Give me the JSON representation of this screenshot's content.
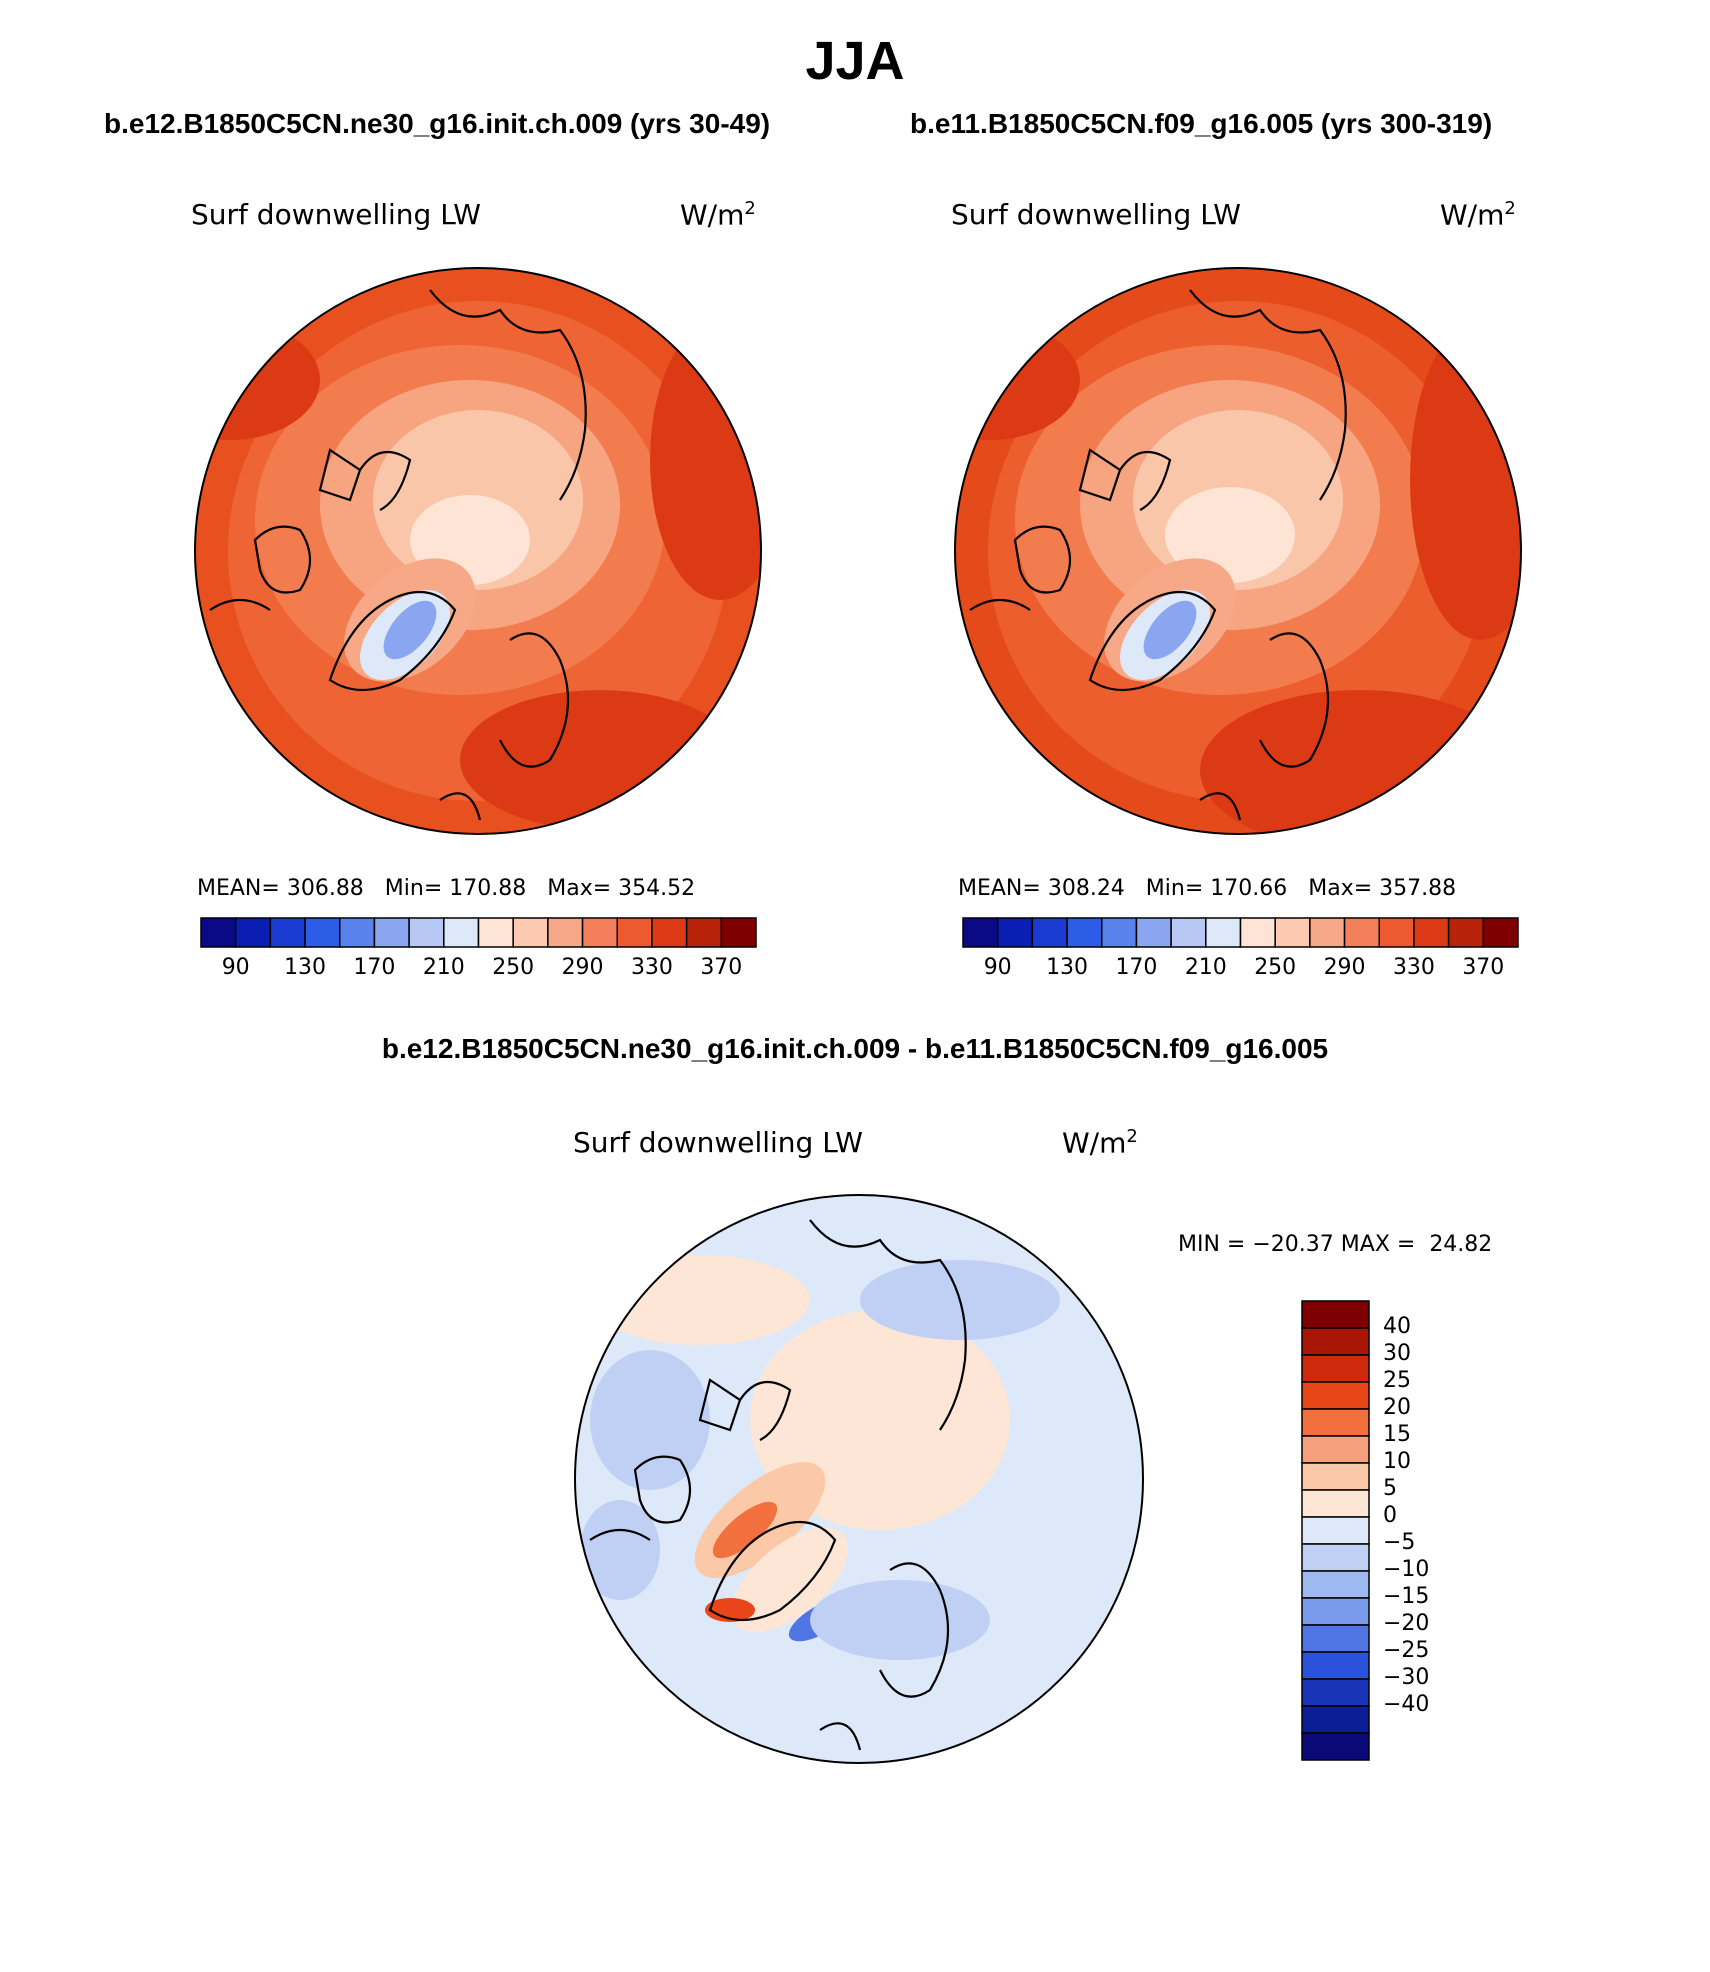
{
  "title": "JJA",
  "panels": [
    {
      "case_title": "b.e12.B1850C5CN.ne30_g16.init.ch.009 (yrs 30-49)",
      "variable": "Surf downwelling LW",
      "units_base": "W/m",
      "units_exp": "2",
      "stats": {
        "mean_label": "MEAN=",
        "mean": "306.88",
        "min_label": "Min=",
        "min": "170.88",
        "max_label": "Max=",
        "max": "354.52"
      }
    },
    {
      "case_title": "b.e11.B1850C5CN.f09_g16.005 (yrs 300-319)",
      "variable": "Surf downwelling LW",
      "units_base": "W/m",
      "units_exp": "2",
      "stats": {
        "mean_label": "MEAN=",
        "mean": "308.24",
        "min_label": "Min=",
        "min": "170.66",
        "max_label": "Max=",
        "max": "357.88"
      }
    }
  ],
  "diff_panel": {
    "title": "b.e12.B1850C5CN.ne30_g16.init.ch.009 - b.e11.B1850C5CN.f09_g16.005",
    "variable": "Surf downwelling LW",
    "units_base": "W/m",
    "units_exp": "2",
    "stats": {
      "min_label": "MIN =",
      "min": "−20.37",
      "max_label": "MAX =",
      "max": "24.82"
    }
  },
  "colorbar_main": {
    "colors": [
      "#0a0a86",
      "#0b1eb4",
      "#1a3cd2",
      "#2d5ce6",
      "#5a82ec",
      "#8aa6f0",
      "#b7c8f4",
      "#dde8f8",
      "#fde4d4",
      "#fbcab0",
      "#f7a886",
      "#f3805a",
      "#ee5a30",
      "#dc3a14",
      "#b82208",
      "#7e0000"
    ],
    "labels": [
      "90",
      "130",
      "170",
      "210",
      "250",
      "290",
      "330",
      "370"
    ]
  },
  "colorbar_diff": {
    "colors": [
      "#7e0000",
      "#a81606",
      "#cc2a0a",
      "#e84618",
      "#f2703e",
      "#f6a07e",
      "#fbc9a8",
      "#fde6d6",
      "#dde8f8",
      "#c0d0f4",
      "#9eb8f0",
      "#7a9aea",
      "#5076e4",
      "#2a52dc",
      "#1a34b8",
      "#0b1e96",
      "#0a0a78"
    ],
    "labels": [
      "40",
      "30",
      "25",
      "20",
      "15",
      "10",
      "5",
      "0",
      "−5",
      "−10",
      "−15",
      "−20",
      "−25",
      "−30",
      "−40"
    ]
  }
}
